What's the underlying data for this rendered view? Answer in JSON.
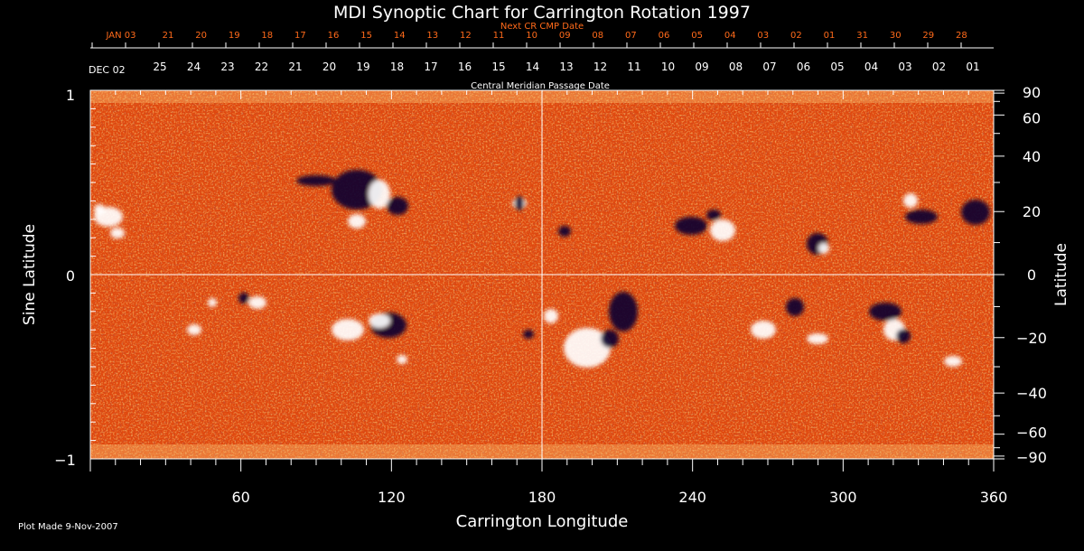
{
  "title": "MDI Synoptic Chart for Carrington Rotation 1997",
  "top_axis": {
    "next_label": "Next CR CMP Date",
    "next_dates": [
      "JAN 03",
      "21",
      "20",
      "19",
      "18",
      "17",
      "16",
      "15",
      "14",
      "13",
      "12",
      "11",
      "10",
      "09",
      "08",
      "07",
      "06",
      "05",
      "04",
      "03",
      "02",
      "01",
      "31",
      "30",
      "29",
      "28"
    ],
    "current_start": "DEC 02",
    "current_dates": [
      "25",
      "24",
      "23",
      "22",
      "21",
      "20",
      "19",
      "18",
      "17",
      "16",
      "15",
      "14",
      "13",
      "12",
      "11",
      "10",
      "09",
      "08",
      "07",
      "06",
      "05",
      "04",
      "03",
      "02",
      "01"
    ],
    "label": "Central Meridian Passage Date"
  },
  "left_axis": {
    "label": "Sine Latitude",
    "ticks": [
      "1",
      "0",
      "−1"
    ]
  },
  "right_axis": {
    "label": "Latitude",
    "ticks": [
      "90",
      "60",
      "40",
      "20",
      "0",
      "−20",
      "−40",
      "−60",
      "−90"
    ]
  },
  "bottom_axis": {
    "label": "Carrington Longitude",
    "ticks": [
      "60",
      "120",
      "180",
      "240",
      "300",
      "360"
    ]
  },
  "footer": "Plot Made  9-Nov-2007",
  "colors": {
    "background": "#000000",
    "field_base": "#e0480e",
    "positive": "#ffffff",
    "negative": "#0a0630",
    "axis": "#ffffff",
    "date_orange": "#ff6a1a"
  }
}
